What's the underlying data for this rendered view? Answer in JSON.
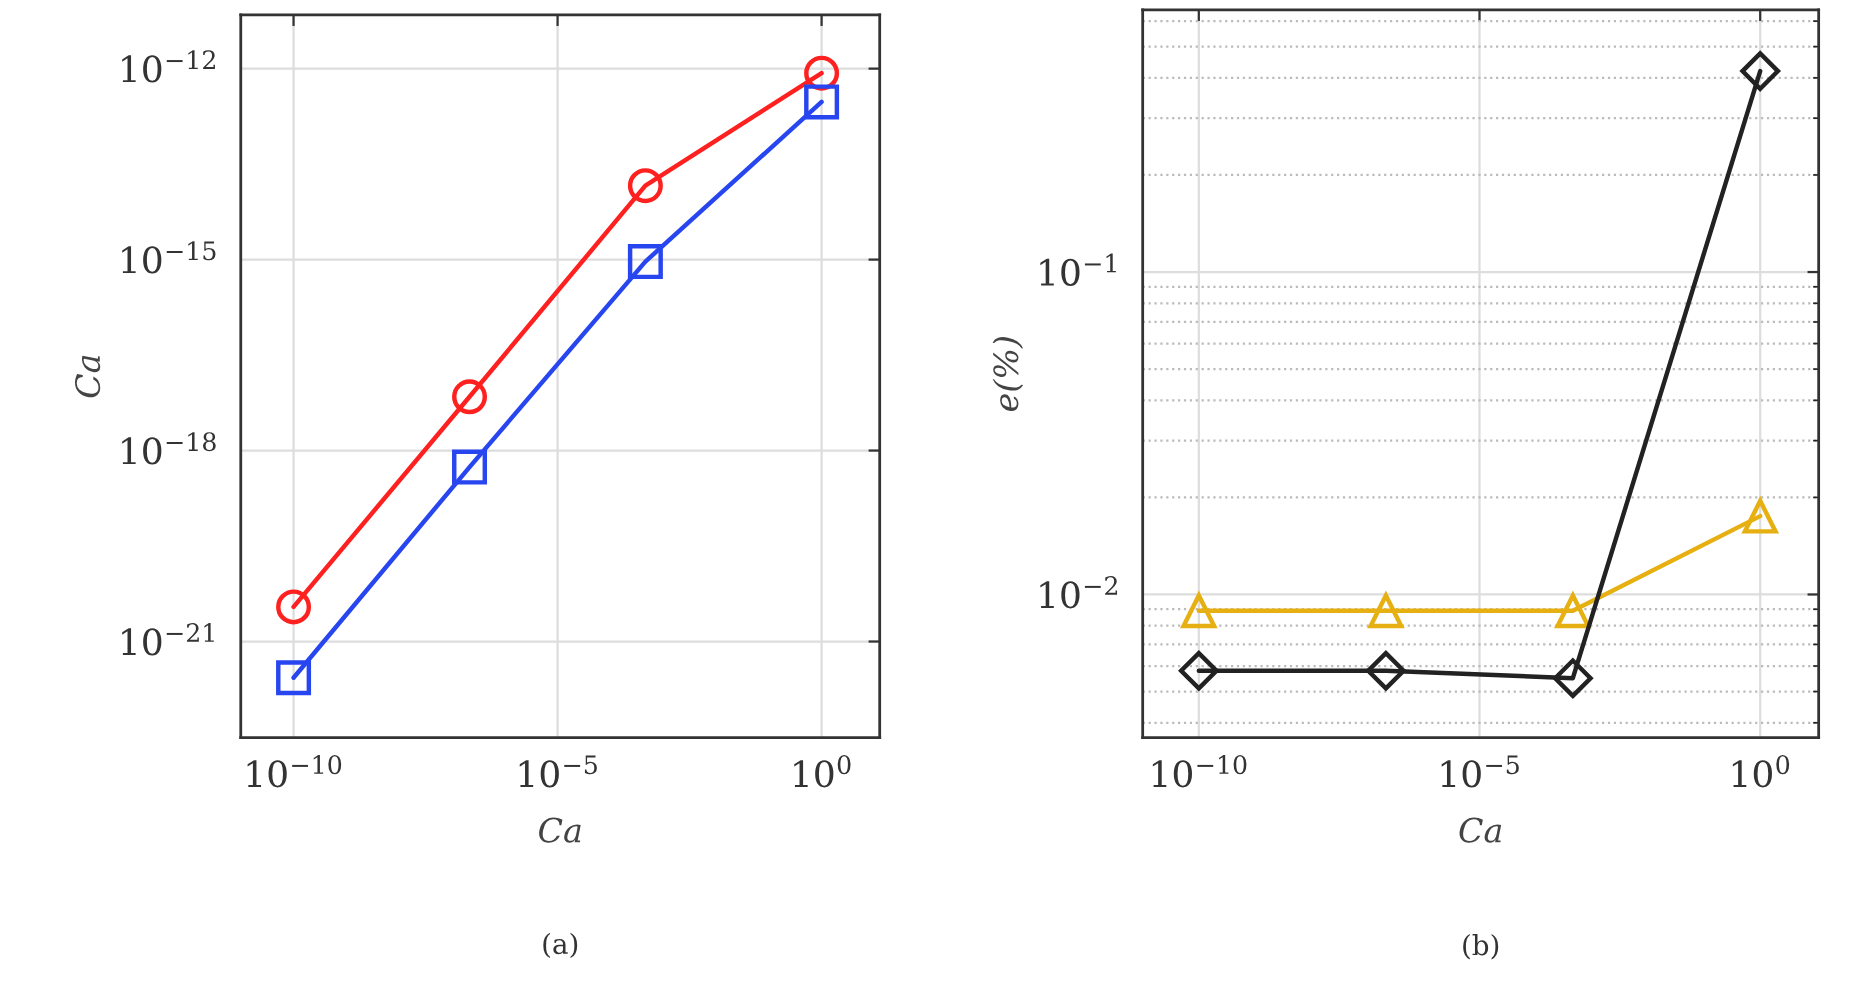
{
  "chart_data": [
    {
      "type": "line",
      "xlabel": "Ca",
      "ylabel": "Ca",
      "log": "xy",
      "grid": true,
      "line_style": "solid",
      "x": [
        1e-10,
        2.15e-07,
        0.00046,
        1
      ],
      "series": [
        {
          "color": "#ff2020",
          "marker": "circle",
          "values": [
            3.5e-21,
            7e-18,
            1.45e-14,
            8.5e-13
          ]
        },
        {
          "color": "#2846f0",
          "marker": "square",
          "values": [
            2.7e-22,
            5.5e-19,
            9.3e-16,
            3e-13
          ]
        }
      ],
      "xlim": [
        1e-11,
        12.6
      ],
      "ylim": [
        3.1e-23,
        7e-12
      ],
      "xticks": [
        {
          "value": 1e-10,
          "label": "10$^{−10}$"
        },
        {
          "value": 1e-05,
          "label": "10$^{−5}$"
        },
        {
          "value": 1,
          "label": "10$^{0}$"
        }
      ],
      "yticks": [
        {
          "value": 1e-21,
          "label": "10$^{−21}$"
        },
        {
          "value": 1e-18,
          "label": "10$^{−18}$"
        },
        {
          "value": 1e-15,
          "label": "10$^{−15}$"
        },
        {
          "value": 1e-12,
          "label": "10$^{−12}$"
        }
      ],
      "annotations": [
        "(a)"
      ]
    },
    {
      "type": "line",
      "xlabel": "Ca",
      "ylabel": "e(%)",
      "log": "xy",
      "grid": true,
      "line_style": "solid",
      "x": [
        1e-10,
        2.15e-07,
        0.00046,
        1
      ],
      "series": [
        {
          "color": "#e6b012",
          "marker": "triangle",
          "values": [
            0.0089,
            0.0089,
            0.0089,
            0.0175
          ]
        },
        {
          "color": "#222222",
          "marker": "diamond",
          "values": [
            0.0058,
            0.0058,
            0.0055,
            0.42
          ]
        }
      ],
      "xlim": [
        1e-11,
        11
      ],
      "ylim": [
        0.0036,
        0.65
      ],
      "xticks": [
        {
          "value": 1e-10,
          "label": "10$^{−10}$"
        },
        {
          "value": 1e-05,
          "label": "10$^{−5}$"
        },
        {
          "value": 1,
          "label": "10$^{0}$"
        }
      ],
      "yticks": [
        {
          "value": 0.01,
          "label": "10$^{−2}$"
        },
        {
          "value": 0.1,
          "label": "10$^{−1}$"
        }
      ],
      "annotations": [
        "(b)"
      ]
    }
  ]
}
